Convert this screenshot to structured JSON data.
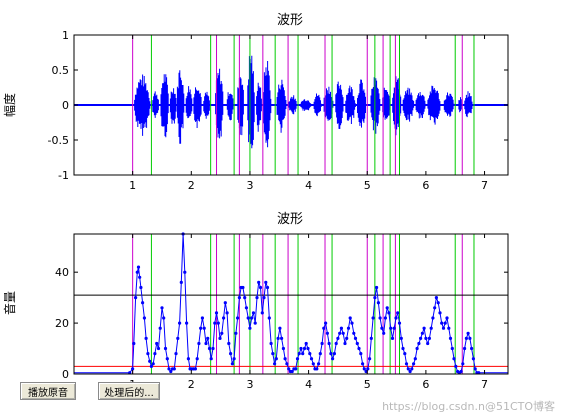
{
  "buttons": {
    "play_original": "播放原音",
    "play_processed": "处理后的..."
  },
  "watermark": "https://blog.csdn.n@51CTO博客",
  "colors": {
    "signal": "#0000ff",
    "start_marker": "#cc00cc",
    "end_marker": "#00cc00",
    "threshold_high": "#000000",
    "threshold_low": "#ff0000",
    "background": "#ffffff"
  },
  "chart_data": [
    {
      "type": "line",
      "title": "波形",
      "xlabel": "",
      "ylabel": "幅度",
      "xlim": [
        0,
        7.4
      ],
      "ylim": [
        -1,
        1
      ],
      "xticks": [
        1,
        2,
        3,
        4,
        5,
        6,
        7
      ],
      "yticks": [
        -1,
        -0.5,
        0,
        0.5,
        1
      ],
      "ytick_labels": [
        "-1",
        "-0.5",
        "0",
        "0.5",
        "1"
      ],
      "segments": [
        {
          "start": 1.02,
          "end": 1.3,
          "peak": 0.45
        },
        {
          "start": 1.33,
          "end": 1.45,
          "peak": 0.22
        },
        {
          "start": 1.47,
          "end": 1.62,
          "peak": 0.5
        },
        {
          "start": 1.63,
          "end": 1.75,
          "peak": 0.3
        },
        {
          "start": 1.75,
          "end": 1.88,
          "peak": 0.6
        },
        {
          "start": 1.9,
          "end": 2.02,
          "peak": 0.3
        },
        {
          "start": 2.03,
          "end": 2.18,
          "peak": 0.35
        },
        {
          "start": 2.2,
          "end": 2.32,
          "peak": 0.2
        },
        {
          "start": 2.4,
          "end": 2.55,
          "peak": 0.55
        },
        {
          "start": 2.6,
          "end": 2.72,
          "peak": 0.25
        },
        {
          "start": 2.78,
          "end": 2.9,
          "peak": 0.55
        },
        {
          "start": 2.95,
          "end": 3.08,
          "peak": 0.85
        },
        {
          "start": 3.1,
          "end": 3.2,
          "peak": 0.4
        },
        {
          "start": 3.22,
          "end": 3.36,
          "peak": 0.7
        },
        {
          "start": 3.45,
          "end": 3.62,
          "peak": 0.4
        },
        {
          "start": 3.65,
          "end": 3.8,
          "peak": 0.15
        },
        {
          "start": 3.85,
          "end": 4.05,
          "peak": 0.1
        },
        {
          "start": 4.08,
          "end": 4.22,
          "peak": 0.18
        },
        {
          "start": 4.25,
          "end": 4.42,
          "peak": 0.3
        },
        {
          "start": 4.45,
          "end": 4.6,
          "peak": 0.38
        },
        {
          "start": 4.62,
          "end": 4.8,
          "peak": 0.3
        },
        {
          "start": 4.82,
          "end": 4.98,
          "peak": 0.38
        },
        {
          "start": 5.05,
          "end": 5.22,
          "peak": 0.42
        },
        {
          "start": 5.25,
          "end": 5.4,
          "peak": 0.3
        },
        {
          "start": 5.42,
          "end": 5.58,
          "peak": 0.45
        },
        {
          "start": 5.6,
          "end": 5.8,
          "peak": 0.25
        },
        {
          "start": 5.82,
          "end": 6.0,
          "peak": 0.22
        },
        {
          "start": 6.02,
          "end": 6.25,
          "peak": 0.3
        },
        {
          "start": 6.3,
          "end": 6.48,
          "peak": 0.2
        },
        {
          "start": 6.55,
          "end": 6.62,
          "peak": 0.12
        },
        {
          "start": 6.65,
          "end": 6.8,
          "peak": 0.2
        }
      ],
      "start_markers": [
        1.0,
        2.43,
        2.82,
        3.22,
        3.65,
        4.28,
        5.0,
        5.27,
        5.48,
        6.62
      ],
      "end_markers": [
        1.32,
        2.33,
        2.73,
        3.0,
        3.43,
        3.82,
        4.4,
        5.13,
        5.39,
        5.55,
        6.5,
        6.82
      ]
    },
    {
      "type": "line",
      "title": "波形",
      "xlabel": "",
      "ylabel": "音量",
      "xlim": [
        0,
        7.4
      ],
      "ylim": [
        0,
        55
      ],
      "xticks": [
        1,
        2,
        3,
        4,
        5,
        6,
        7
      ],
      "yticks": [
        0,
        20,
        40
      ],
      "ytick_labels": [
        "0",
        "20",
        "40"
      ],
      "threshold_high": 31,
      "threshold_low": 3,
      "volume": {
        "x": [
          0,
          0.95,
          1.0,
          1.02,
          1.05,
          1.08,
          1.1,
          1.12,
          1.14,
          1.17,
          1.2,
          1.23,
          1.26,
          1.29,
          1.32,
          1.35,
          1.38,
          1.41,
          1.44,
          1.47,
          1.5,
          1.53,
          1.56,
          1.59,
          1.62,
          1.65,
          1.68,
          1.71,
          1.74,
          1.77,
          1.8,
          1.83,
          1.86,
          1.89,
          1.92,
          1.95,
          1.98,
          2.01,
          2.04,
          2.07,
          2.1,
          2.13,
          2.16,
          2.19,
          2.22,
          2.25,
          2.28,
          2.31,
          2.34,
          2.37,
          2.4,
          2.43,
          2.46,
          2.49,
          2.52,
          2.55,
          2.58,
          2.61,
          2.64,
          2.67,
          2.7,
          2.73,
          2.76,
          2.79,
          2.82,
          2.85,
          2.88,
          2.91,
          2.94,
          2.97,
          3.0,
          3.03,
          3.06,
          3.09,
          3.12,
          3.15,
          3.18,
          3.21,
          3.24,
          3.27,
          3.3,
          3.33,
          3.36,
          3.39,
          3.42,
          3.45,
          3.48,
          3.51,
          3.54,
          3.57,
          3.6,
          3.63,
          3.66,
          3.69,
          3.72,
          3.75,
          3.78,
          3.81,
          3.84,
          3.87,
          3.9,
          3.93,
          3.96,
          3.99,
          4.02,
          4.05,
          4.08,
          4.11,
          4.14,
          4.17,
          4.2,
          4.23,
          4.26,
          4.29,
          4.32,
          4.35,
          4.38,
          4.41,
          4.44,
          4.47,
          4.5,
          4.53,
          4.56,
          4.59,
          4.62,
          4.65,
          4.68,
          4.71,
          4.74,
          4.77,
          4.8,
          4.83,
          4.86,
          4.89,
          4.92,
          4.95,
          4.98,
          5.01,
          5.04,
          5.07,
          5.1,
          5.13,
          5.16,
          5.19,
          5.22,
          5.25,
          5.28,
          5.31,
          5.34,
          5.37,
          5.4,
          5.43,
          5.46,
          5.49,
          5.52,
          5.55,
          5.58,
          5.61,
          5.64,
          5.67,
          5.7,
          5.73,
          5.76,
          5.79,
          5.82,
          5.85,
          5.88,
          5.91,
          5.94,
          5.97,
          6.0,
          6.03,
          6.06,
          6.09,
          6.12,
          6.15,
          6.18,
          6.21,
          6.24,
          6.27,
          6.3,
          6.33,
          6.36,
          6.39,
          6.42,
          6.45,
          6.48,
          6.51,
          6.54,
          6.57,
          6.6,
          6.63,
          6.66,
          6.69,
          6.72,
          6.75,
          6.78,
          6.81,
          6.84,
          6.87,
          6.9,
          7.4
        ],
        "y": [
          0.5,
          0.5,
          2,
          12,
          30,
          40,
          42,
          38,
          34,
          28,
          22,
          14,
          8,
          5,
          3,
          4,
          8,
          12,
          10,
          18,
          26,
          22,
          10,
          6,
          2,
          1,
          2,
          2,
          8,
          14,
          20,
          36,
          55,
          40,
          20,
          6,
          2,
          2,
          2,
          2,
          6,
          12,
          18,
          22,
          18,
          12,
          14,
          10,
          6,
          10,
          20,
          24,
          20,
          14,
          16,
          22,
          28,
          24,
          12,
          8,
          4,
          6,
          16,
          22,
          30,
          34,
          34,
          30,
          26,
          22,
          18,
          22,
          24,
          20,
          30,
          36,
          34,
          24,
          30,
          36,
          34,
          22,
          12,
          8,
          4,
          6,
          14,
          18,
          14,
          10,
          6,
          4,
          2,
          1,
          1,
          2,
          2,
          6,
          8,
          10,
          8,
          10,
          12,
          10,
          8,
          6,
          4,
          2,
          2,
          4,
          8,
          12,
          18,
          20,
          16,
          12,
          8,
          6,
          8,
          12,
          14,
          16,
          18,
          16,
          12,
          14,
          18,
          22,
          20,
          16,
          14,
          12,
          10,
          8,
          4,
          2,
          1,
          2,
          6,
          14,
          22,
          30,
          34,
          28,
          22,
          18,
          16,
          22,
          26,
          24,
          18,
          14,
          18,
          22,
          24,
          20,
          14,
          10,
          8,
          4,
          2,
          1,
          2,
          4,
          6,
          10,
          12,
          14,
          16,
          18,
          14,
          12,
          14,
          18,
          22,
          26,
          30,
          28,
          24,
          20,
          18,
          20,
          22,
          18,
          14,
          10,
          6,
          3,
          1,
          0.5,
          1,
          4,
          10,
          14,
          16,
          14,
          10,
          6,
          2,
          0.5,
          0.5,
          0.5
        ]
      },
      "start_markers": [
        1.0,
        2.43,
        2.82,
        3.22,
        3.65,
        4.28,
        5.0,
        5.27,
        5.48,
        6.62
      ],
      "end_markers": [
        1.32,
        2.33,
        2.73,
        3.0,
        3.43,
        3.82,
        4.4,
        5.13,
        5.39,
        5.55,
        6.5,
        6.82
      ]
    }
  ]
}
